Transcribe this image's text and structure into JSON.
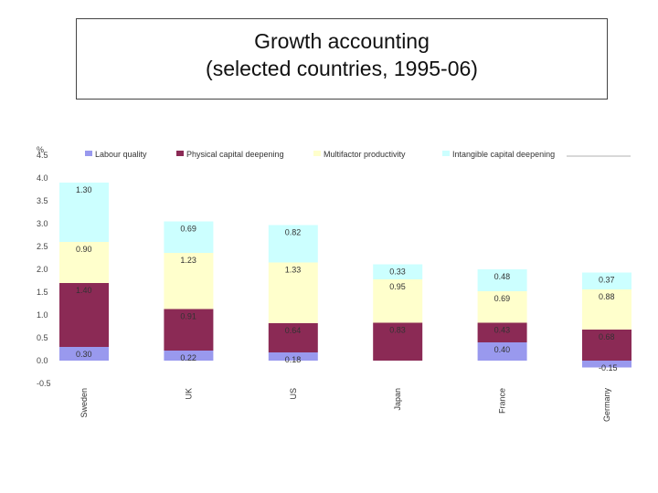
{
  "title": {
    "line1": "Growth accounting",
    "line2": "(selected countries, 1995-06)"
  },
  "chart_data": {
    "type": "bar",
    "stacked": true,
    "ylabel": "%",
    "ylim": [
      -0.5,
      4.5
    ],
    "yticks": [
      "-0.5",
      "0.0",
      "0.5",
      "1.0",
      "1.5",
      "2.0",
      "2.5",
      "3.0",
      "3.5",
      "4.0",
      "4.5"
    ],
    "ytick_values": [
      -0.5,
      0,
      0.5,
      1.0,
      1.5,
      2.0,
      2.5,
      3.0,
      3.5,
      4.0,
      4.5
    ],
    "categories": [
      "Sweden",
      "UK",
      "US",
      "Japan",
      "France",
      "Germany"
    ],
    "legend_position": "top",
    "grid": false,
    "series": [
      {
        "name": "Labour quality",
        "color": "#9999ee",
        "values": [
          0.3,
          0.22,
          0.18,
          null,
          0.4,
          -0.15
        ],
        "labels": [
          "0.30",
          "0.22",
          "0.18",
          "",
          "0.40",
          "-0.15"
        ]
      },
      {
        "name": "Physical capital deepening",
        "color": "#8b2a55",
        "values": [
          1.4,
          0.91,
          0.64,
          0.83,
          0.43,
          0.68
        ],
        "labels": [
          "1.40",
          "0.91",
          "0.64",
          "0.83",
          "0.43",
          "0.68"
        ]
      },
      {
        "name": "Multifactor productivity",
        "color": "#ffffcc",
        "values": [
          0.9,
          1.23,
          1.33,
          0.95,
          0.69,
          0.88
        ],
        "labels": [
          "0.90",
          "1.23",
          "1.33",
          "0.95",
          "0.69",
          "0.88"
        ]
      },
      {
        "name": "Intangible capital deepening",
        "color": "#ccffff",
        "values": [
          1.3,
          0.69,
          0.82,
          0.33,
          0.48,
          0.37
        ],
        "labels": [
          "1.30",
          "0.69",
          "0.82",
          "0.33",
          "0.48",
          "0.37"
        ]
      }
    ]
  }
}
